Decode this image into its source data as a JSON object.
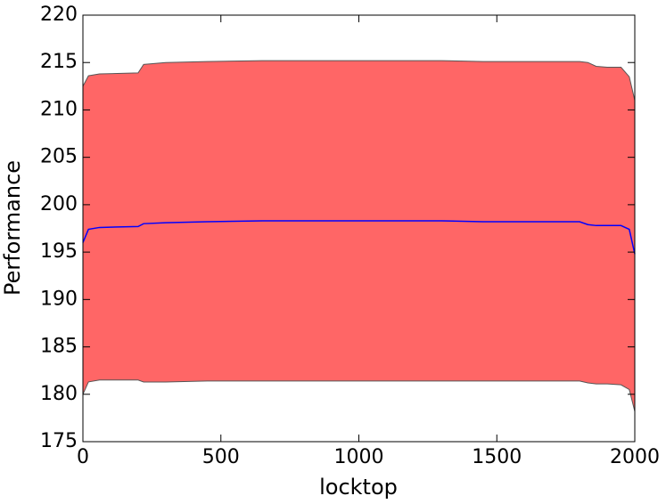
{
  "chart_data": {
    "type": "line",
    "x_label": "locktop",
    "y_label": "Performance",
    "x": [
      0,
      20,
      60,
      200,
      220,
      300,
      450,
      650,
      1300,
      1450,
      1800,
      1830,
      1860,
      1900,
      1950,
      1980,
      2000
    ],
    "series": [
      {
        "color": "#0000ff",
        "values": [
          196.0,
          197.4,
          197.6,
          197.7,
          198.0,
          198.1,
          198.2,
          198.3,
          198.3,
          198.2,
          198.2,
          197.9,
          197.8,
          197.8,
          197.8,
          197.4,
          194.8
        ]
      }
    ],
    "band": {
      "color": "#ff6666",
      "edge_color": "#555555",
      "upper": [
        212.5,
        213.6,
        213.8,
        213.9,
        214.8,
        215.0,
        215.1,
        215.2,
        215.2,
        215.1,
        215.1,
        215.0,
        214.6,
        214.5,
        214.5,
        213.5,
        211.0
      ],
      "lower": [
        180.0,
        181.3,
        181.5,
        181.5,
        181.3,
        181.3,
        181.4,
        181.4,
        181.4,
        181.4,
        181.4,
        181.2,
        181.1,
        181.1,
        181.0,
        180.5,
        178.2
      ]
    },
    "xlim": [
      0,
      2000
    ],
    "ylim": [
      175,
      220
    ],
    "xticks": [
      0,
      500,
      1000,
      1500,
      2000
    ],
    "yticks": [
      175,
      180,
      185,
      190,
      195,
      200,
      205,
      210,
      215,
      220
    ],
    "grid": false
  }
}
